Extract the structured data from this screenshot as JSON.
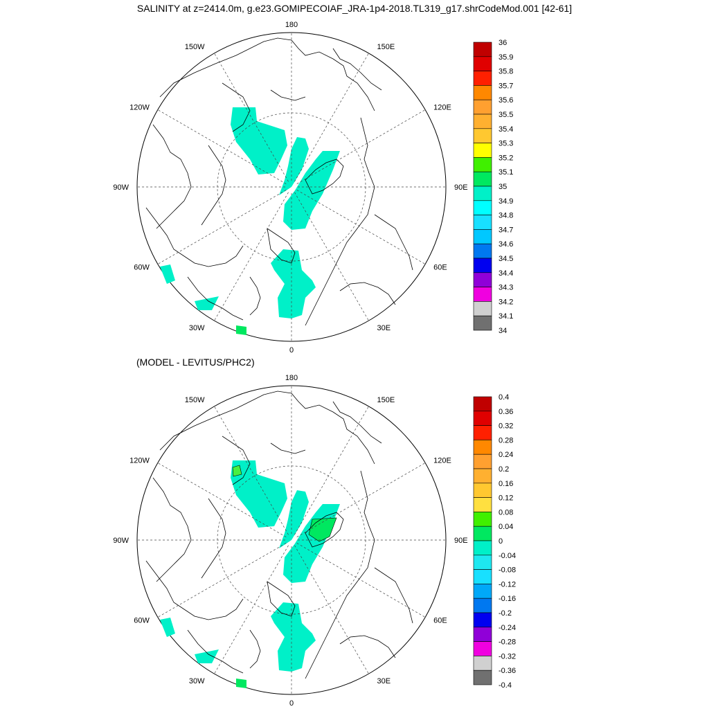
{
  "title": "SALINITY at z=2414.0m, g.e23.GOMIPECOIAF_JRA-1p4-2018.TL319_g17.shrCodeMod.001 [42-61]",
  "diff_title": "(MODEL - LEVITUS/PHC2)",
  "lon_labels": {
    "top": "180",
    "bottom": "0",
    "upper_left": "150W",
    "upper_right": "150E",
    "mid_upper_left": "120W",
    "mid_upper_right": "120E",
    "left": "90W",
    "right": "90E",
    "lower_left": "60W",
    "lower_right": "60E",
    "bottom_left": "30W",
    "bottom_right": "30E"
  },
  "colors": {
    "land_line": "#000000",
    "ocean": "#ffffff",
    "fill_main": "#00f0c8",
    "fill_light": "#1ee8f0",
    "fill_green": "#00e860",
    "fill_lime": "#48f040"
  },
  "top_colorbar": {
    "labels": [
      "36",
      "35.9",
      "35.8",
      "35.7",
      "35.6",
      "35.5",
      "35.4",
      "35.3",
      "35.2",
      "35.1",
      "35",
      "34.9",
      "34.8",
      "34.7",
      "34.6",
      "34.5",
      "34.4",
      "34.3",
      "34.2",
      "34.1",
      "34"
    ],
    "colors": [
      "#c00000",
      "#e00000",
      "#ff2000",
      "#ff8800",
      "#ffa030",
      "#ffb030",
      "#ffc830",
      "#ffff00",
      "#40f000",
      "#00e860",
      "#00f0c8",
      "#00ffff",
      "#18e0ff",
      "#00c8ff",
      "#0078f0",
      "#0000f0",
      "#9000d8",
      "#f000e0",
      "#d0d0d0",
      "#707070"
    ]
  },
  "bottom_colorbar": {
    "labels": [
      "0.4",
      "0.36",
      "0.32",
      "0.28",
      "0.24",
      "0.2",
      "0.16",
      "0.12",
      "0.08",
      "0.04",
      "0",
      "-0.04",
      "-0.08",
      "-0.12",
      "-0.16",
      "-0.2",
      "-0.24",
      "-0.28",
      "-0.32",
      "-0.36",
      "-0.4"
    ],
    "colors": [
      "#c00000",
      "#e00000",
      "#ff2000",
      "#ff8800",
      "#ffa030",
      "#ffb030",
      "#ffc830",
      "#ffe040",
      "#40f000",
      "#00e860",
      "#00f0c8",
      "#1ee8f0",
      "#18e0ff",
      "#00a8f8",
      "#0078f0",
      "#0000f0",
      "#9000d8",
      "#f000e0",
      "#d0d0d0",
      "#707070"
    ]
  }
}
